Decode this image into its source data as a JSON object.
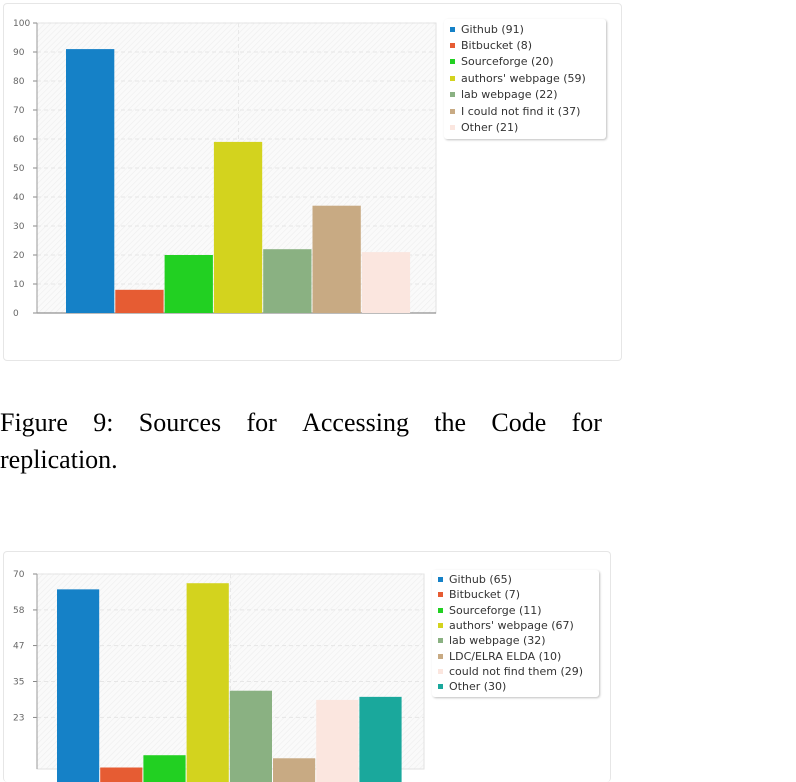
{
  "caption": {
    "line1_words": [
      "Figure",
      "9:",
      "Sources",
      "for",
      "Accessing",
      "the",
      "Code",
      "for"
    ],
    "line2": "replication."
  },
  "chart_data": [
    {
      "type": "bar",
      "title": "",
      "xlabel": "",
      "ylabel": "",
      "ylim": [
        0,
        100
      ],
      "yticks": [
        "0",
        "10",
        "20",
        "30",
        "40",
        "50",
        "60",
        "70",
        "80",
        "90",
        "100"
      ],
      "grid": true,
      "legend_position": "top-right",
      "series": [
        {
          "name": "Github (91)",
          "value": 91,
          "color": "#1581c7"
        },
        {
          "name": "Bitbucket (8)",
          "value": 8,
          "color": "#e65c33"
        },
        {
          "name": "Sourceforge (20)",
          "value": 20,
          "color": "#22d022"
        },
        {
          "name": "authors' webpage (59)",
          "value": 59,
          "color": "#d3d31e"
        },
        {
          "name": "lab webpage (22)",
          "value": 22,
          "color": "#8ab182"
        },
        {
          "name": "I could not find it (37)",
          "value": 37,
          "color": "#c8aa83"
        },
        {
          "name": "Other (21)",
          "value": 21,
          "color": "#fbe6df"
        }
      ]
    },
    {
      "type": "bar",
      "title": "",
      "xlabel": "",
      "ylabel": "",
      "ylim": [
        0,
        70
      ],
      "yticks": [
        "23",
        "35",
        "47",
        "58",
        "70"
      ],
      "ytick_values": [
        23.3,
        35,
        46.7,
        58.3,
        70
      ],
      "grid": true,
      "legend_position": "top-right",
      "series": [
        {
          "name": "Github (65)",
          "value": 65,
          "color": "#1581c7"
        },
        {
          "name": "Bitbucket (7)",
          "value": 7,
          "color": "#e65c33"
        },
        {
          "name": "Sourceforge (11)",
          "value": 11,
          "color": "#22d022"
        },
        {
          "name": "authors' webpage (67)",
          "value": 67,
          "color": "#d3d31e"
        },
        {
          "name": "lab webpage (32)",
          "value": 32,
          "color": "#8ab182"
        },
        {
          "name": "LDC/ELRA ELDA (10)",
          "value": 10,
          "color": "#c8aa83"
        },
        {
          "name": "could not find them (29)",
          "value": 29,
          "color": "#fbe6df"
        },
        {
          "name": "Other (30)",
          "value": 30,
          "color": "#1aa89c"
        }
      ]
    }
  ]
}
